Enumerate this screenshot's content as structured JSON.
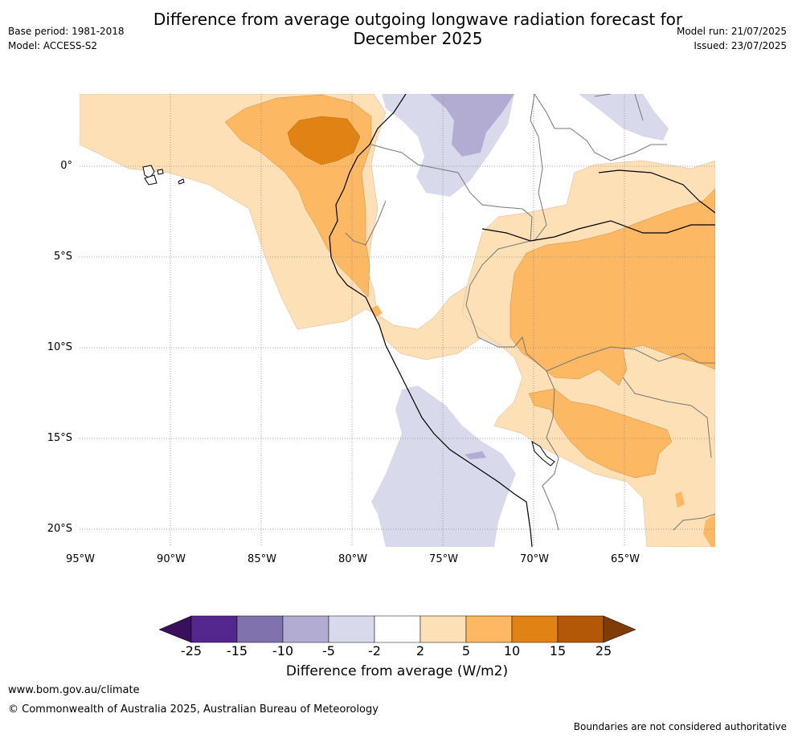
{
  "title_line1": "Difference from average outgoing longwave radiation forecast for",
  "title_line2": "December 2025",
  "base_period": "Base period: 1981-2018",
  "model": "Model: ACCESS-S2",
  "model_run": "Model run: 21/07/2025",
  "issued": "Issued: 23/07/2025",
  "lat_labels": [
    "0°",
    "5°S",
    "10°S",
    "15°S",
    "20°S"
  ],
  "lon_labels": [
    "95°W",
    "90°W",
    "85°W",
    "80°W",
    "75°W",
    "70°W",
    "65°W"
  ],
  "colorbar": {
    "ticks": [
      "-25",
      "-15",
      "-10",
      "-5",
      "-2",
      "2",
      "5",
      "10",
      "15",
      "25"
    ],
    "label": "Difference from average (W/m2)",
    "colors": [
      "#3a0f5c",
      "#54278f",
      "#8072ad",
      "#b2abd2",
      "#d8daeb",
      "#ffffff",
      "#fee0b6",
      "#fdb863",
      "#e08214",
      "#b35806",
      "#7f3b08"
    ]
  },
  "website": "www.bom.gov.au/climate",
  "copyright": "© Commonwealth of Australia 2025, Australian Bureau of Meteorology",
  "disclaimer": "Boundaries are not considered authoritative"
}
